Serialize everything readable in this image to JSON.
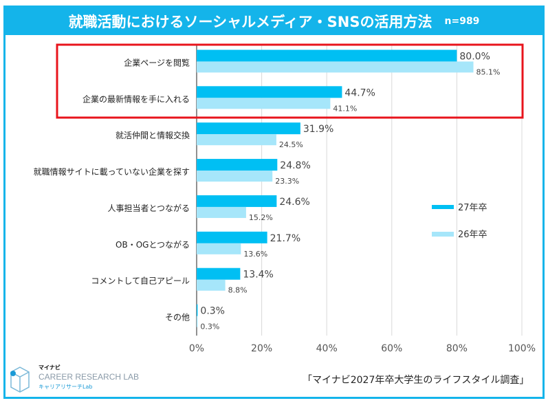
{
  "chart_data": {
    "type": "bar",
    "orientation": "horizontal",
    "title": "就職活動におけるソーシャルメディア・SNSの活用方法",
    "subtitle": "n=989",
    "categories": [
      "企業ページを閲覧",
      "企業の最新情報を手に入れる",
      "就活仲間と情報交換",
      "就職情報サイトに載っていない企業を探す",
      "人事担当者とつながる",
      "OB・OGとつながる",
      "コメントして自己アピール",
      "その他"
    ],
    "series": [
      {
        "name": "27年卒",
        "color": "#00bff3",
        "values": [
          80.0,
          44.7,
          31.9,
          24.8,
          24.6,
          21.7,
          13.4,
          0.3
        ]
      },
      {
        "name": "26年卒",
        "color": "#a6e6fa",
        "values": [
          85.1,
          41.1,
          24.5,
          23.3,
          15.2,
          13.6,
          8.8,
          0.3
        ]
      }
    ],
    "xlim": [
      0,
      100
    ],
    "xticks": [
      "0%",
      "20%",
      "40%",
      "60%",
      "80%",
      "100%"
    ],
    "grid": true,
    "legend_position": "right",
    "highlight": "first two categories boxed in red"
  },
  "footer": {
    "source": "「マイナビ2027年卒大学生のライフスタイル調査」"
  },
  "logo": {
    "brand": "マイナビ",
    "name": "CAREER RESEARCH LAB",
    "sub": "キャリアリサーチLab"
  }
}
